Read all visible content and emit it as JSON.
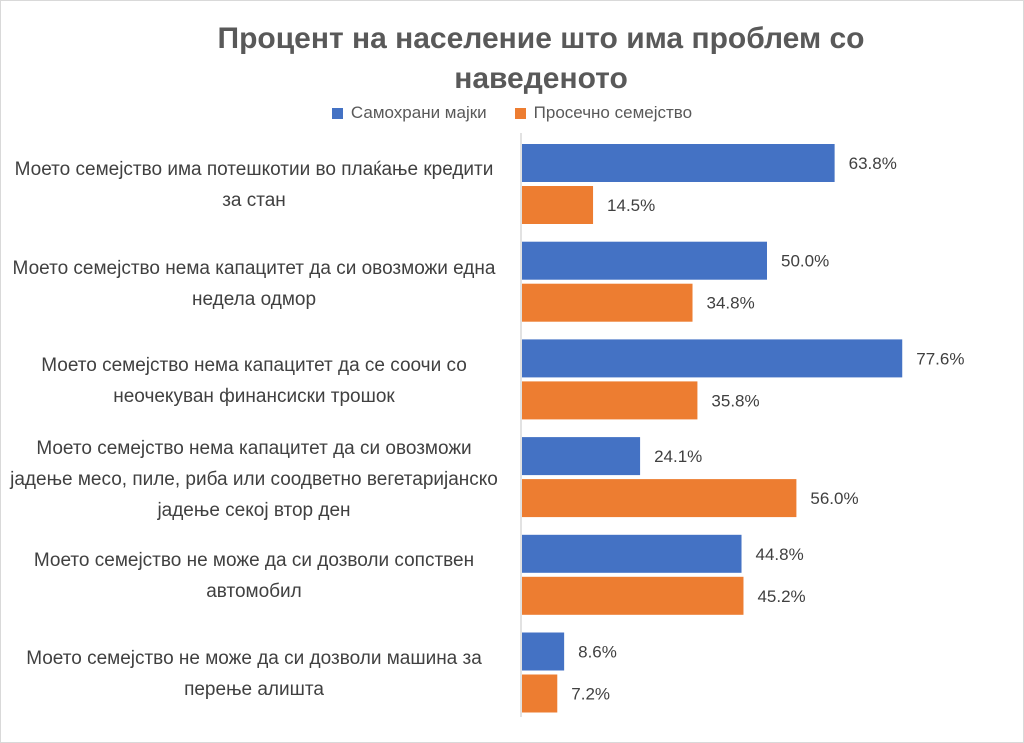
{
  "chart_data": {
    "type": "bar",
    "orientation": "horizontal",
    "title": "Процент на население што има проблем со наведеното",
    "categories": [
      "Моето семејство има потешкотии во плаќање кредити за стан",
      "Моето семејство нема капацитет да си овозможи една недела одмор",
      "Моето семејство нема капацитет да се соочи со неочекуван финансиски трошок",
      "Моето семејство нема капацитет да си овозможи јадење месо, пиле, риба или соодветно вегетаријанско јадење секој втор ден",
      "Моето семејство не може да си дозволи сопствен автомобил",
      "Моето семејство не може да си дозволи машина за перење алишта"
    ],
    "series": [
      {
        "name": "Самохрани мајки",
        "color": "#4472c4",
        "values": [
          63.8,
          50.0,
          77.6,
          24.1,
          44.8,
          8.6
        ],
        "labels": [
          "63.8%",
          "50.0%",
          "77.6%",
          "24.1%",
          "44.8%",
          "8.6%"
        ]
      },
      {
        "name": "Просечно семејство",
        "color": "#ed7d31",
        "values": [
          14.5,
          34.8,
          35.8,
          56.0,
          45.2,
          7.2
        ],
        "labels": [
          "14.5%",
          "34.8%",
          "35.8%",
          "56.0%",
          "45.2%",
          "7.2%"
        ]
      }
    ],
    "xlim": [
      0,
      100
    ],
    "legend_position": "top",
    "grid": false
  }
}
